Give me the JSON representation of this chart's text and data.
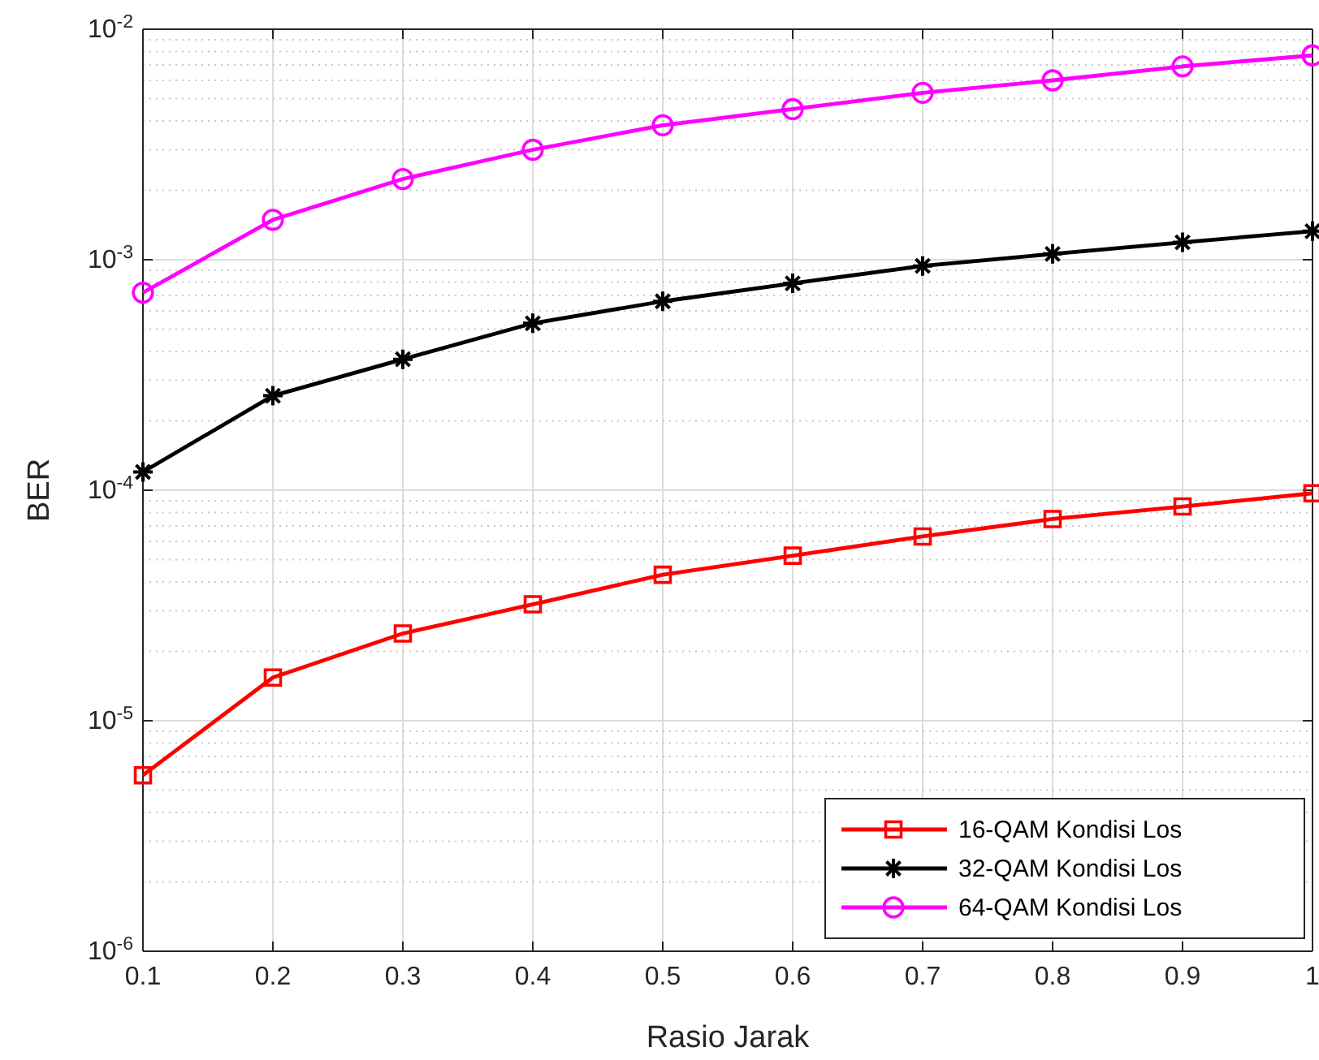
{
  "chart_data": {
    "type": "line",
    "xlabel": "Rasio Jarak",
    "ylabel": "BER",
    "log": "y",
    "grid": true,
    "legend": "bottom right",
    "line_style": "solid",
    "x": [
      0.1,
      0.2,
      0.3,
      0.4,
      0.5,
      0.6,
      0.7,
      0.8,
      0.9,
      1
    ],
    "xlim": [
      0.1,
      1
    ],
    "xticks": [
      0.1,
      0.2,
      0.3,
      0.4,
      0.5,
      0.6,
      0.7,
      0.8,
      0.9,
      1
    ],
    "ylim": [
      1e-06,
      0.01
    ],
    "yticks": [
      {
        "value": 1e-06,
        "label": "10$^{-6}$"
      },
      {
        "value": 1e-05,
        "label": "10$^{-5}$"
      },
      {
        "value": 0.0001,
        "label": "10$^{-4}$"
      },
      {
        "value": 0.001,
        "label": "10$^{-3}$"
      },
      {
        "value": 0.01,
        "label": "10$^{-2}$"
      }
    ],
    "series": [
      {
        "name": "16-QAM Kondisi Los",
        "color": "#ff0000",
        "marker": "square",
        "values": [
          5.8e-06,
          1.54e-05,
          2.39e-05,
          3.2e-05,
          4.3e-05,
          5.2e-05,
          6.3e-05,
          7.5e-05,
          8.5e-05,
          9.7e-05
        ]
      },
      {
        "name": "32-QAM Kondisi Los",
        "color": "#000000",
        "marker": "cross",
        "values": [
          0.00012,
          0.000257,
          0.00037,
          0.00053,
          0.00066,
          0.00079,
          0.00094,
          0.00106,
          0.00119,
          0.00133
        ]
      },
      {
        "name": "64-QAM Kondisi Los",
        "color": "#ff00ff",
        "marker": "circle",
        "values": [
          0.00072,
          0.00149,
          0.00224,
          0.003,
          0.00383,
          0.0045,
          0.0053,
          0.006,
          0.0069,
          0.0077
        ]
      }
    ]
  }
}
